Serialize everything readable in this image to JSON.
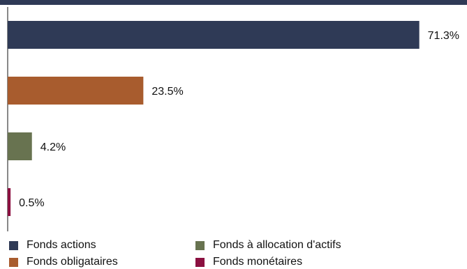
{
  "chart_data": {
    "type": "bar",
    "orientation": "horizontal",
    "categories": [
      "Fonds actions",
      "Fonds obligataires",
      "Fonds à allocation d'actifs",
      "Fonds monétaires"
    ],
    "values": [
      71.3,
      23.5,
      4.2,
      0.5
    ],
    "value_labels": [
      "71.3%",
      "23.5%",
      "4.2%",
      "0.5%"
    ],
    "colors": [
      "#2f3a56",
      "#a85c2e",
      "#687350",
      "#8b1040"
    ],
    "xlim": [
      0,
      100
    ],
    "grid": false,
    "legend": "bottom",
    "title": "",
    "xlabel": "",
    "ylabel": ""
  },
  "legend": {
    "items": [
      {
        "label": "Fonds actions",
        "color": "#2f3a56"
      },
      {
        "label": "Fonds obligataires",
        "color": "#a85c2e"
      },
      {
        "label": "Fonds à allocation d'actifs",
        "color": "#687350"
      },
      {
        "label": "Fonds monétaires",
        "color": "#8b1040"
      }
    ]
  }
}
